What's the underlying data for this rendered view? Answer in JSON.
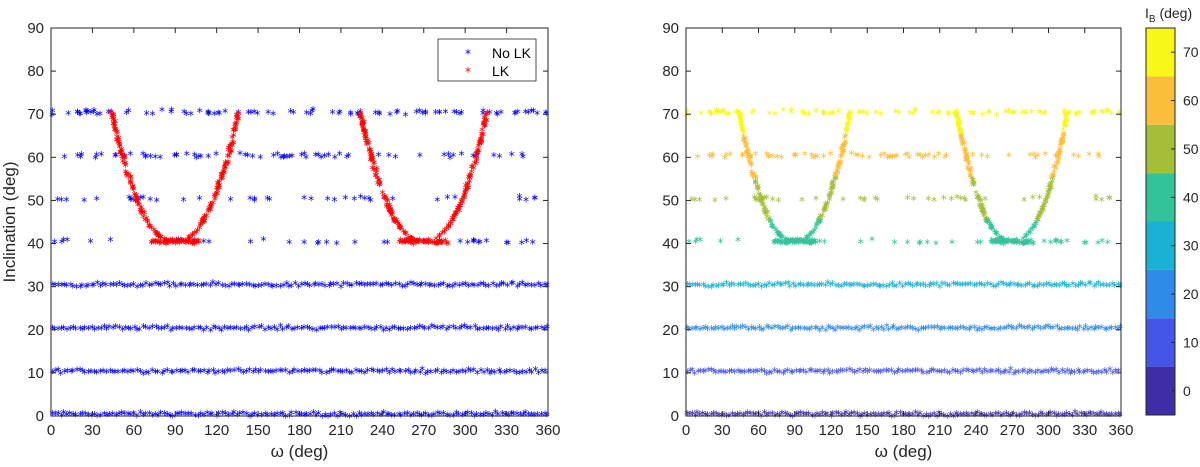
{
  "chart_data": [
    {
      "type": "scatter",
      "panel": "left",
      "xlabel": "ω (deg)",
      "ylabel": "Inclination (deg)",
      "xlim": [
        0,
        360
      ],
      "ylim": [
        0,
        90
      ],
      "xticks": [
        0,
        30,
        60,
        90,
        120,
        150,
        180,
        210,
        240,
        270,
        300,
        330,
        360
      ],
      "yticks": [
        0,
        10,
        20,
        30,
        40,
        50,
        60,
        70,
        80,
        90
      ],
      "legend_position": "top-right",
      "series": [
        {
          "name": "No LK",
          "color": "#0000ff",
          "marker": "*",
          "description": "horizontal bands at 0, 10, 20, 30 deg across full ω range; sparse points at 40-70 deg"
        },
        {
          "name": "LK",
          "color": "#ff0000",
          "marker": "*",
          "description": "U-shaped arcs centered near ω=90 and ω=270, from ~70 deg down to ~40 deg"
        }
      ],
      "bands": [
        0,
        10,
        20,
        30
      ],
      "arc_centers": [
        90,
        270
      ],
      "arc_min_inclination": 40,
      "arc_max_inclination": 70
    },
    {
      "type": "scatter",
      "panel": "right",
      "xlabel": "ω (deg)",
      "ylabel": "",
      "xlim": [
        0,
        360
      ],
      "ylim": [
        0,
        90
      ],
      "xticks": [
        0,
        30,
        60,
        90,
        120,
        150,
        180,
        210,
        240,
        270,
        300,
        330,
        360
      ],
      "yticks": [
        0,
        10,
        20,
        30,
        40,
        50,
        60,
        70,
        80,
        90
      ],
      "colorbar": {
        "title": "I",
        "title_sub": "B",
        "title_unit": " (deg)",
        "range": [
          -5,
          75
        ],
        "ticks": [
          0,
          10,
          20,
          30,
          40,
          50,
          60,
          70
        ],
        "levels": [
          {
            "from": -5,
            "to": 5,
            "color": "#3d2ea8"
          },
          {
            "from": 5,
            "to": 15,
            "color": "#4555e6"
          },
          {
            "from": 15,
            "to": 25,
            "color": "#2f8ae8"
          },
          {
            "from": 25,
            "to": 35,
            "color": "#19b1d4"
          },
          {
            "from": 35,
            "to": 45,
            "color": "#33c39a"
          },
          {
            "from": 45,
            "to": 55,
            "color": "#a4be3a"
          },
          {
            "from": 55,
            "to": 65,
            "color": "#fbbd3c"
          },
          {
            "from": 65,
            "to": 75,
            "color": "#f7f71a"
          }
        ]
      }
    }
  ]
}
